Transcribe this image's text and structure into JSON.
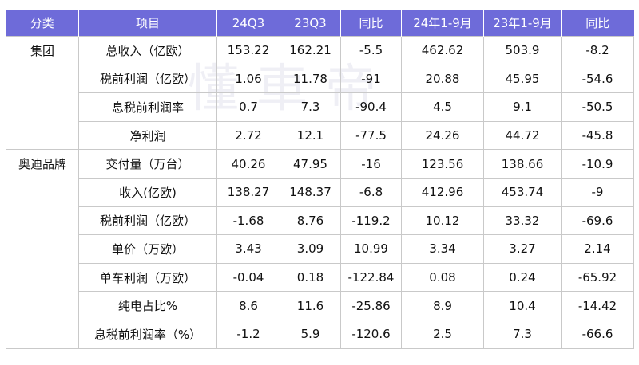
{
  "watermark": "懂車帝",
  "headers": [
    "分类",
    "项目",
    "24Q3",
    "23Q3",
    "同比",
    "24年1-9月",
    "23年1-9月",
    "同比"
  ],
  "rows": [
    {
      "category": "集团",
      "item": "总收入（亿欧）",
      "v24q3": "153.22",
      "v23q3": "162.21",
      "yoy_q": "-5.5",
      "v24ytd": "462.62",
      "v23ytd": "503.9",
      "yoy_ytd": "-8.2"
    },
    {
      "category": "",
      "item": "税前利润（亿欧）",
      "v24q3": "1.06",
      "v23q3": "11.78",
      "yoy_q": "-91",
      "v24ytd": "20.88",
      "v23ytd": "45.95",
      "yoy_ytd": "-54.6"
    },
    {
      "category": "",
      "item": "息税前利润率",
      "v24q3": "0.7",
      "v23q3": "7.3",
      "yoy_q": "-90.4",
      "v24ytd": "4.5",
      "v23ytd": "9.1",
      "yoy_ytd": "-50.5"
    },
    {
      "category": "",
      "item": "净利润",
      "v24q3": "2.72",
      "v23q3": "12.1",
      "yoy_q": "-77.5",
      "v24ytd": "24.26",
      "v23ytd": "44.72",
      "yoy_ytd": "-45.8"
    },
    {
      "category": "奥迪品牌",
      "item": "交付量（万台）",
      "v24q3": "40.26",
      "v23q3": "47.95",
      "yoy_q": "-16",
      "v24ytd": "123.56",
      "v23ytd": "138.66",
      "yoy_ytd": "-10.9"
    },
    {
      "category": "",
      "item": "收入(亿欧)",
      "v24q3": "138.27",
      "v23q3": "148.37",
      "yoy_q": "-6.8",
      "v24ytd": "412.96",
      "v23ytd": "453.74",
      "yoy_ytd": "-9"
    },
    {
      "category": "",
      "item": "税前利润（亿欧）",
      "v24q3": "-1.68",
      "v23q3": "8.76",
      "yoy_q": "-119.2",
      "v24ytd": "10.12",
      "v23ytd": "33.32",
      "yoy_ytd": "-69.6"
    },
    {
      "category": "",
      "item": "单价（万欧）",
      "v24q3": "3.43",
      "v23q3": "3.09",
      "yoy_q": "10.99",
      "v24ytd": "3.34",
      "v23ytd": "3.27",
      "yoy_ytd": "2.14"
    },
    {
      "category": "",
      "item": "单车利润（万欧）",
      "v24q3": "-0.04",
      "v23q3": "0.18",
      "yoy_q": "-122.84",
      "v24ytd": "0.08",
      "v23ytd": "0.24",
      "yoy_ytd": "-65.92"
    },
    {
      "category": "",
      "item": "纯电占比%",
      "v24q3": "8.6",
      "v23q3": "11.6",
      "yoy_q": "-25.86",
      "v24ytd": "8.9",
      "v23ytd": "10.4",
      "yoy_ytd": "-14.42"
    },
    {
      "category": "",
      "item": "息税前利润率（%）",
      "v24q3": "-1.2",
      "v23q3": "5.9",
      "yoy_q": "-120.6",
      "v24ytd": "2.5",
      "v23ytd": "7.3",
      "yoy_ytd": "-66.6"
    }
  ],
  "colors": {
    "header_bg": "#6e6bd9",
    "header_text": "#ffffff",
    "border": "#c9c9c9"
  }
}
